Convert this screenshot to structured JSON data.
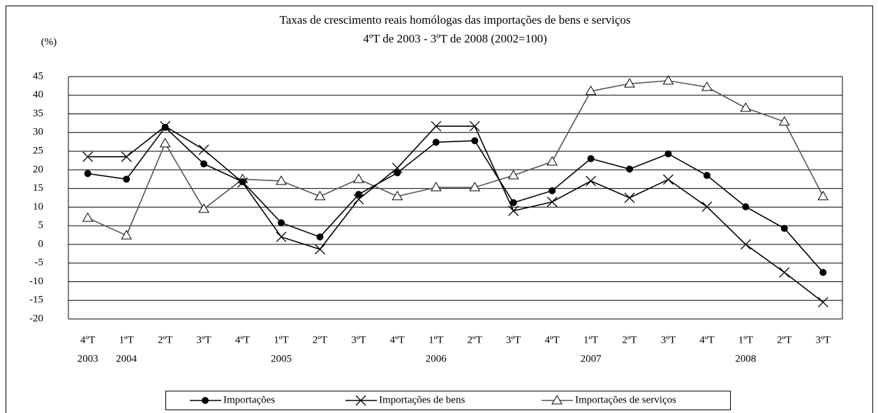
{
  "chart_data": {
    "type": "line",
    "title": "Taxas de crescimento reais homólogas das importações de bens e serviços",
    "subtitle": "4ºT de 2003 - 3ºT de 2008 (2002=100)",
    "y_label": "(%)",
    "categories": [
      "4ºT",
      "1ºT",
      "2ºT",
      "3ºT",
      "4ºT",
      "1ºT",
      "2ºT",
      "3ºT",
      "4ºT",
      "1ºT",
      "2ºT",
      "3ºT",
      "4ºT",
      "1ºT",
      "2ºT",
      "3ºT",
      "4ºT",
      "1ºT",
      "2ºT",
      "3ºT"
    ],
    "category_groups": [
      "2003",
      "2004",
      null,
      null,
      null,
      "2005",
      null,
      null,
      null,
      "2006",
      null,
      null,
      null,
      "2007",
      null,
      null,
      null,
      "2008",
      null,
      null
    ],
    "series": [
      {
        "name": "Importações",
        "color": "#000000",
        "marker": "circle",
        "values": [
          19.0,
          17.5,
          31.4,
          21.6,
          16.8,
          5.8,
          2.0,
          13.4,
          19.2,
          27.4,
          27.8,
          11.2,
          14.4,
          23.0,
          20.2,
          24.3,
          18.5,
          10.1,
          4.3,
          -7.5
        ]
      },
      {
        "name": "Importações de bens",
        "color": "#000000",
        "marker": "x",
        "values": [
          23.5,
          23.5,
          31.7,
          25.4,
          16.6,
          2.0,
          -1.3,
          12.1,
          20.5,
          31.7,
          31.7,
          9.0,
          11.4,
          17.0,
          12.5,
          17.4,
          10.1,
          0.0,
          -7.5,
          -15.5
        ]
      },
      {
        "name": "Importações de serviços",
        "color": "#555555",
        "marker": "triangle",
        "values": [
          7.1,
          2.4,
          27.1,
          9.5,
          17.5,
          17.0,
          12.9,
          17.5,
          12.9,
          15.3,
          15.3,
          18.5,
          22.2,
          41.1,
          43.1,
          43.9,
          42.2,
          36.6,
          32.9,
          12.9
        ]
      }
    ],
    "ylim": [
      -20,
      45
    ],
    "yticks": [
      -20,
      -15,
      -10,
      -5,
      0,
      5,
      10,
      15,
      20,
      25,
      30,
      35,
      40,
      45
    ],
    "grid": true,
    "legend": "bottom"
  }
}
